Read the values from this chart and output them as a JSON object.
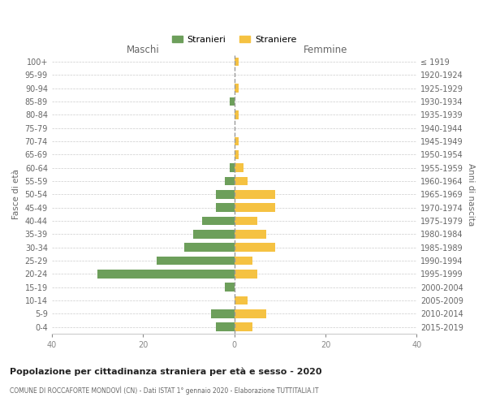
{
  "age_groups": [
    "100+",
    "95-99",
    "90-94",
    "85-89",
    "80-84",
    "75-79",
    "70-74",
    "65-69",
    "60-64",
    "55-59",
    "50-54",
    "45-49",
    "40-44",
    "35-39",
    "30-34",
    "25-29",
    "20-24",
    "15-19",
    "10-14",
    "5-9",
    "0-4"
  ],
  "birth_years": [
    "≤ 1919",
    "1920-1924",
    "1925-1929",
    "1930-1934",
    "1935-1939",
    "1940-1944",
    "1945-1949",
    "1950-1954",
    "1955-1959",
    "1960-1964",
    "1965-1969",
    "1970-1974",
    "1975-1979",
    "1980-1984",
    "1985-1989",
    "1990-1994",
    "1995-1999",
    "2000-2004",
    "2005-2009",
    "2010-2014",
    "2015-2019"
  ],
  "maschi": [
    0,
    0,
    0,
    1,
    0,
    0,
    0,
    0,
    1,
    2,
    4,
    4,
    7,
    9,
    11,
    17,
    30,
    2,
    0,
    5,
    4
  ],
  "femmine": [
    1,
    0,
    1,
    0,
    1,
    0,
    1,
    1,
    2,
    3,
    9,
    9,
    5,
    7,
    9,
    4,
    5,
    0,
    3,
    7,
    4
  ],
  "color_maschi": "#6d9f5b",
  "color_femmine": "#f5c242",
  "xlim": 40,
  "title": "Popolazione per cittadinanza straniera per età e sesso - 2020",
  "subtitle": "COMUNE DI ROCCAFORTE MONDOVÌ (CN) - Dati ISTAT 1° gennaio 2020 - Elaborazione TUTTITALIA.IT",
  "ylabel_left": "Fasce di età",
  "ylabel_right": "Anni di nascita",
  "xlabel_left": "Maschi",
  "xlabel_right": "Femmine",
  "legend_stranieri": "Stranieri",
  "legend_straniere": "Straniere",
  "background_color": "#ffffff",
  "grid_color": "#cccccc",
  "tick_color": "#888888",
  "label_color": "#666666",
  "dashed_line_color": "#999999"
}
